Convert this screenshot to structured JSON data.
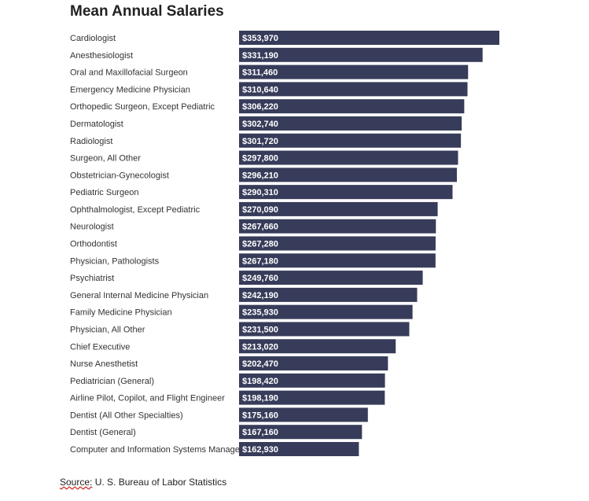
{
  "colors": {
    "bar": "#373c5a",
    "value_text": "#ffffff",
    "label_text": "#333333"
  },
  "source": {
    "prefix": "Source:",
    "text": " U. S. Bureau of Labor Statistics"
  },
  "chart_data": {
    "type": "bar",
    "orientation": "horizontal",
    "title": "Mean Annual Salaries",
    "xlabel": "",
    "ylabel": "",
    "xlim": [
      0,
      353970
    ],
    "grid": false,
    "categories": [
      "Cardiologist",
      "Anesthesiologist",
      "Oral and Maxillofacial Surgeon",
      "Emergency Medicine Physician",
      "Orthopedic Surgeon, Except Pediatric",
      "Dermatologist",
      "Radiologist",
      "Surgeon, All Other",
      "Obstetrician-Gynecologist",
      "Pediatric Surgeon",
      "Ophthalmologist, Except Pediatric",
      "Neurologist",
      "Orthodontist",
      "Physician, Pathologists",
      "Psychiatrist",
      "General Internal Medicine Physician",
      "Family Medicine Physician",
      "Physician, All Other",
      "Chief Executive",
      "Nurse Anesthetist",
      "Pediatrician (General)",
      "Airline Pilot, Copilot, and Flight Engineer",
      "Dentist (All Other Specialties)",
      "Dentist (General)",
      "Computer and Information Systems Manager"
    ],
    "values": [
      353970,
      331190,
      311460,
      310640,
      306220,
      302740,
      301720,
      297800,
      296210,
      290310,
      270090,
      267660,
      267280,
      267180,
      249760,
      242190,
      235930,
      231500,
      213020,
      202470,
      198420,
      198190,
      175160,
      167160,
      162930
    ],
    "value_labels": [
      "$353,970",
      "$331,190",
      "$311,460",
      "$310,640",
      "$306,220",
      "$302,740",
      "$301,720",
      "$297,800",
      "$296,210",
      "$290,310",
      "$270,090",
      "$267,660",
      "$267,280",
      "$267,180",
      "$249,760",
      "$242,190",
      "$235,930",
      "$231,500",
      "$213,020",
      "$202,470",
      "$198,420",
      "$198,190",
      "$175,160",
      "$167,160",
      "$162,930"
    ]
  }
}
